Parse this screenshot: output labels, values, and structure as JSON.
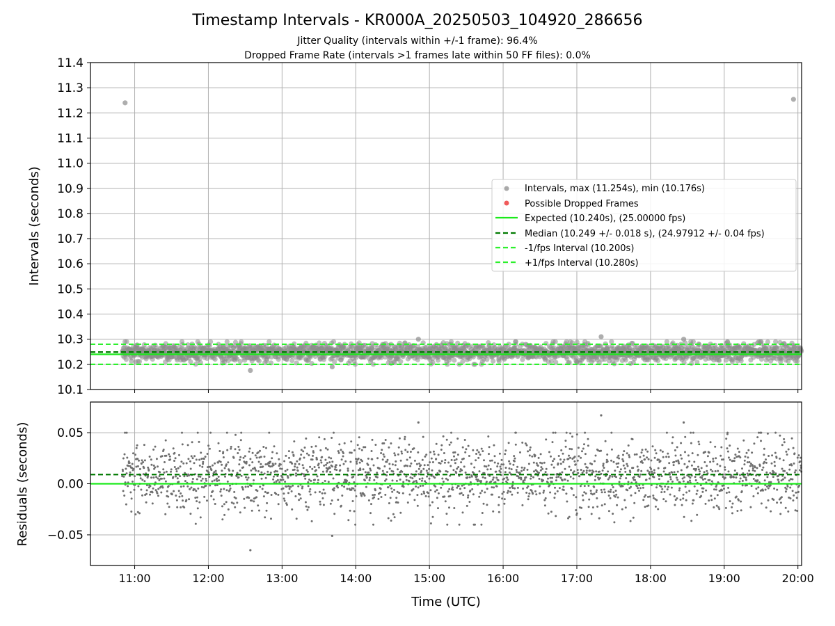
{
  "figure": {
    "title": "Timestamp Intervals - KR000A_20250503_104920_286656",
    "subtitle_1": "Jitter Quality (intervals within +/-1 frame): 96.4%",
    "subtitle_2": "Dropped Frame Rate (intervals >1 frames late within 50 FF files): 0.0%"
  },
  "colors": {
    "intervals": "#8c8c8c",
    "dropped": "#f05a5a",
    "expected": "#1aea1a",
    "median": "#007a00",
    "fps_bound": "#2cf02c",
    "grid": "#b0b0b0"
  },
  "chart_data": [
    {
      "type": "scatter",
      "ylabel": "Intervals (seconds)",
      "xlim_hours": [
        10.4,
        20.05
      ],
      "ylim": [
        10.1,
        11.4
      ],
      "y_ticks": [
        "10.1",
        "10.2",
        "10.3",
        "10.4",
        "10.5",
        "10.6",
        "10.7",
        "10.8",
        "10.9",
        "11.0",
        "11.1",
        "11.2",
        "11.3",
        "11.4"
      ],
      "grid": true,
      "legend_position": "center-right",
      "series": [
        {
          "name": "Intervals, max (11.254s), min (10.176s)",
          "marker": "circle",
          "outliers": [
            {
              "x": 10.87,
              "y": 11.24
            },
            {
              "x": 19.94,
              "y": 11.254
            },
            {
              "x": 12.57,
              "y": 10.176
            },
            {
              "x": 13.68,
              "y": 10.19
            },
            {
              "x": 14.85,
              "y": 10.3
            },
            {
              "x": 17.33,
              "y": 10.31
            },
            {
              "x": 18.45,
              "y": 10.3
            }
          ],
          "typical_range": [
            10.2,
            10.29
          ],
          "x_range": [
            10.83,
            20.05
          ]
        },
        {
          "name": "Possible Dropped Frames",
          "marker": "circle",
          "points": []
        }
      ],
      "lines": [
        {
          "name": "Expected (10.240s), (25.00000 fps)",
          "y": 10.24,
          "style": "solid"
        },
        {
          "name": "Median (10.249 +/- 0.018 s), (24.97912 +/- 0.04 fps)",
          "y": 10.249,
          "style": "dashed"
        },
        {
          "name": "-1/fps Interval (10.200s)",
          "y": 10.2,
          "style": "dashed"
        },
        {
          "name": "+1/fps Interval (10.280s)",
          "y": 10.28,
          "style": "dashed"
        }
      ]
    },
    {
      "type": "scatter",
      "xlabel": "Time (UTC)",
      "ylabel": "Residuals (seconds)",
      "xlim_hours": [
        10.4,
        20.05
      ],
      "ylim": [
        -0.08,
        0.08
      ],
      "x_ticks": [
        "11:00",
        "12:00",
        "13:00",
        "14:00",
        "15:00",
        "16:00",
        "17:00",
        "18:00",
        "19:00",
        "20:00"
      ],
      "x_tick_hours": [
        11,
        12,
        13,
        14,
        15,
        16,
        17,
        18,
        19,
        20
      ],
      "y_ticks": [
        "0.05",
        "0.00",
        "−0.05"
      ],
      "y_tick_values": [
        0.05,
        0.0,
        -0.05
      ],
      "grid": true,
      "series": [
        {
          "name": "Residuals",
          "marker": "point",
          "typical_range": [
            -0.04,
            0.05
          ],
          "outliers": [
            {
              "x": 12.57,
              "y": -0.065
            },
            {
              "x": 17.33,
              "y": 0.067
            },
            {
              "x": 14.85,
              "y": 0.06
            },
            {
              "x": 18.45,
              "y": 0.06
            },
            {
              "x": 13.68,
              "y": -0.051
            }
          ]
        }
      ],
      "lines": [
        {
          "name": "Expected",
          "y": 0.0,
          "style": "solid"
        },
        {
          "name": "Median",
          "y": 0.009,
          "style": "dashed"
        }
      ]
    }
  ]
}
